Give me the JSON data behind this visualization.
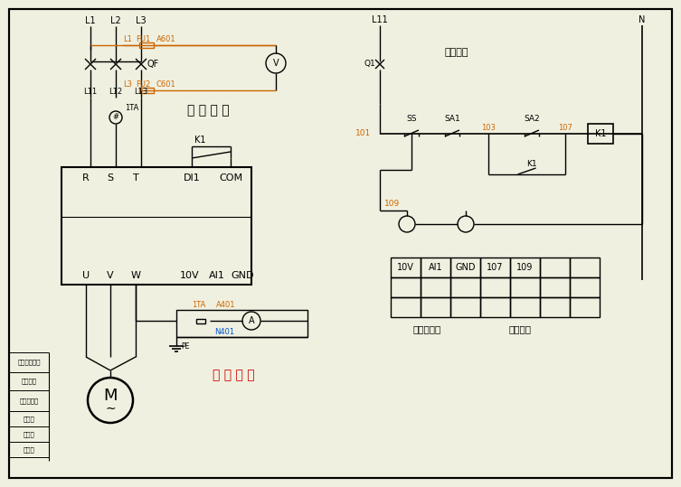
{
  "bg_color": "#f0f0e0",
  "line_color": "#000000",
  "orange_color": "#cc6600",
  "blue_color": "#0055cc",
  "red_color": "#cc0000",
  "figsize": [
    7.53,
    5.39
  ],
  "dpi": 100,
  "table_headers": [
    "10V",
    "AI1",
    "GND",
    "107",
    "109"
  ],
  "sidebar_rows": [
    [
      390,
      412,
      "电机水温主令"
    ],
    [
      412,
      432,
      "变速主令"
    ],
    [
      432,
      455,
      "计算机文件"
    ],
    [
      455,
      472,
      "图　名"
    ],
    [
      472,
      489,
      "图　号"
    ],
    [
      489,
      506,
      "图　号"
    ]
  ]
}
